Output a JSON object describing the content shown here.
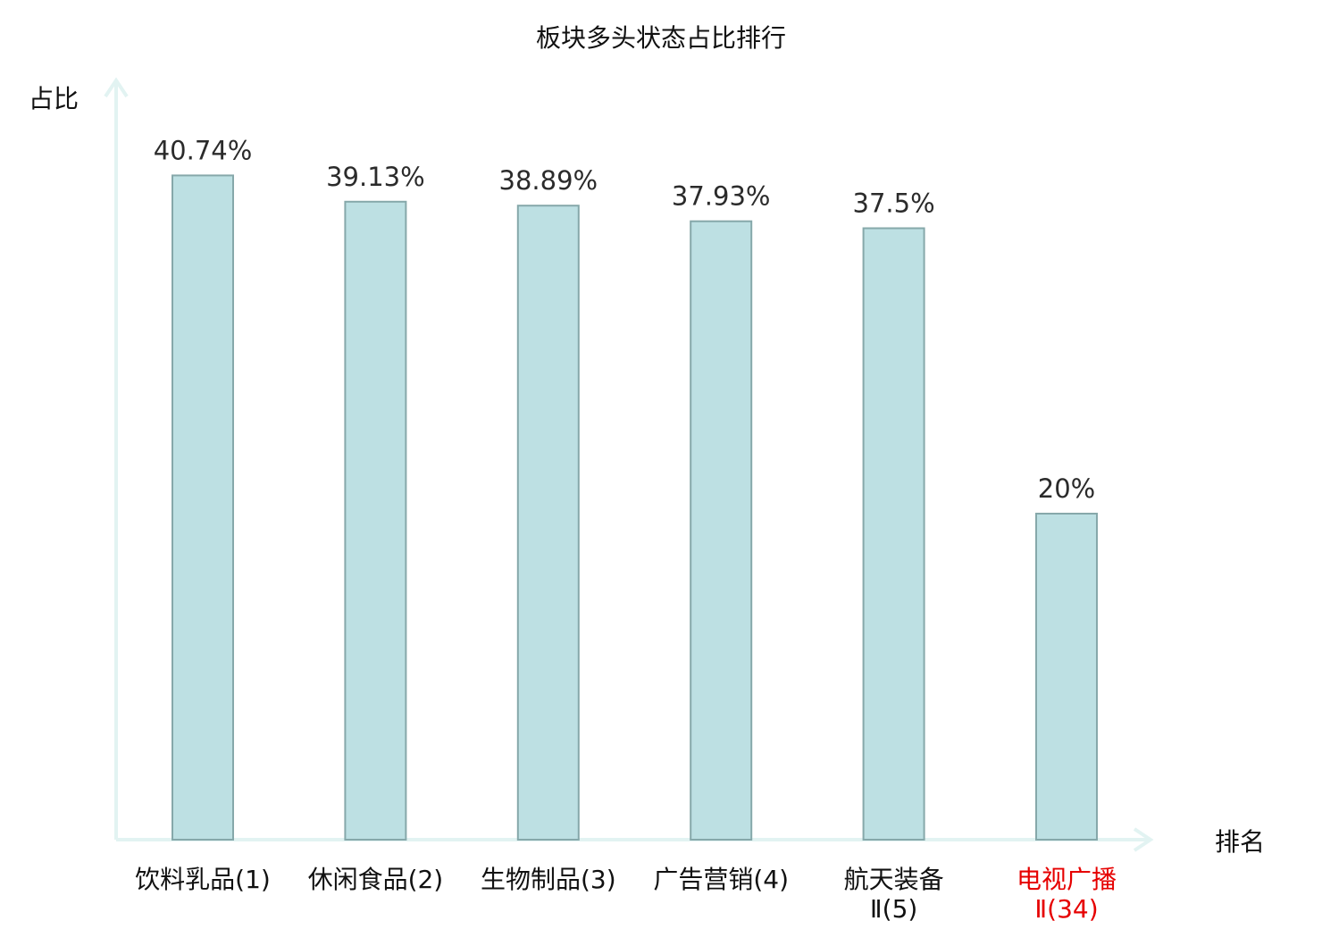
{
  "colors": {
    "bar_fill": "#bde0e3",
    "bar_stroke": "#86a8aa",
    "axis": "#e2f3f2",
    "text": "#2b2b2b",
    "highlight_text": "#e60000"
  },
  "chart_data": {
    "type": "bar",
    "title": "板块多头状态占比排行",
    "ylabel": "占比",
    "xlabel": "排名",
    "ylim": [
      0,
      0.4657
    ],
    "grid": false,
    "categories": [
      {
        "label_lines": [
          "饮料乳品(1)"
        ],
        "highlight": false
      },
      {
        "label_lines": [
          "休闲食品(2)"
        ],
        "highlight": false
      },
      {
        "label_lines": [
          "生物制品(3)"
        ],
        "highlight": false
      },
      {
        "label_lines": [
          "广告营销(4)"
        ],
        "highlight": false
      },
      {
        "label_lines": [
          "航天装备",
          "Ⅱ(5)"
        ],
        "highlight": false
      },
      {
        "label_lines": [
          "电视广播",
          "Ⅱ(34)"
        ],
        "highlight": true
      }
    ],
    "values": [
      0.4074,
      0.3913,
      0.3889,
      0.3793,
      0.375,
      0.2
    ],
    "value_labels": [
      "40.74%",
      "39.13%",
      "38.89%",
      "37.93%",
      "37.5%",
      "20%"
    ]
  }
}
